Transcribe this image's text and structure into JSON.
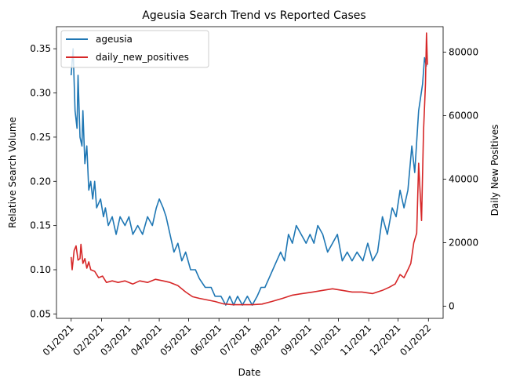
{
  "chart_data": {
    "type": "line",
    "title": "Ageusia Search Trend vs Reported Cases",
    "xlabel": "Date",
    "ylabel_left": "Relative Search Volume",
    "ylabel_right": "Daily New Positives",
    "x_tick_labels": [
      "01/2021",
      "02/2021",
      "03/2021",
      "04/2021",
      "05/2021",
      "06/2021",
      "07/2021",
      "08/2021",
      "09/2021",
      "10/2021",
      "11/2021",
      "12/2021",
      "01/2022"
    ],
    "x_ticks": [
      "2021-01-01",
      "2021-02-01",
      "2021-03-01",
      "2021-04-01",
      "2021-05-01",
      "2021-06-01",
      "2021-07-01",
      "2021-08-01",
      "2021-09-01",
      "2021-10-01",
      "2021-11-01",
      "2021-12-01",
      "2022-01-01"
    ],
    "xlim": [
      "2020-12-17",
      "2022-01-16"
    ],
    "ylim_left": [
      0.045,
      0.375
    ],
    "yticks_left": [
      "0.05",
      "0.10",
      "0.15",
      "0.20",
      "0.25",
      "0.30",
      "0.35"
    ],
    "ylim_right": [
      -3800,
      88000
    ],
    "yticks_right": [
      "0",
      "20000",
      "40000",
      "60000",
      "80000"
    ],
    "legend_position": "upper-left",
    "series": [
      {
        "name": "ageusia",
        "axis": "left",
        "color": "#1f77b4",
        "points": [
          [
            "2021-01-01",
            0.32
          ],
          [
            "2021-01-03",
            0.35
          ],
          [
            "2021-01-05",
            0.28
          ],
          [
            "2021-01-07",
            0.26
          ],
          [
            "2021-01-08",
            0.32
          ],
          [
            "2021-01-10",
            0.25
          ],
          [
            "2021-01-12",
            0.24
          ],
          [
            "2021-01-13",
            0.28
          ],
          [
            "2021-01-15",
            0.22
          ],
          [
            "2021-01-17",
            0.24
          ],
          [
            "2021-01-19",
            0.19
          ],
          [
            "2021-01-21",
            0.2
          ],
          [
            "2021-01-23",
            0.18
          ],
          [
            "2021-01-25",
            0.2
          ],
          [
            "2021-01-27",
            0.17
          ],
          [
            "2021-01-31",
            0.18
          ],
          [
            "2021-02-03",
            0.16
          ],
          [
            "2021-02-05",
            0.17
          ],
          [
            "2021-02-08",
            0.15
          ],
          [
            "2021-02-12",
            0.16
          ],
          [
            "2021-02-16",
            0.14
          ],
          [
            "2021-02-20",
            0.16
          ],
          [
            "2021-02-25",
            0.15
          ],
          [
            "2021-03-01",
            0.16
          ],
          [
            "2021-03-05",
            0.14
          ],
          [
            "2021-03-10",
            0.15
          ],
          [
            "2021-03-15",
            0.14
          ],
          [
            "2021-03-20",
            0.16
          ],
          [
            "2021-03-25",
            0.15
          ],
          [
            "2021-03-29",
            0.17
          ],
          [
            "2021-04-01",
            0.18
          ],
          [
            "2021-04-05",
            0.17
          ],
          [
            "2021-04-08",
            0.16
          ],
          [
            "2021-04-12",
            0.14
          ],
          [
            "2021-04-16",
            0.12
          ],
          [
            "2021-04-20",
            0.13
          ],
          [
            "2021-04-24",
            0.11
          ],
          [
            "2021-04-28",
            0.12
          ],
          [
            "2021-05-03",
            0.1
          ],
          [
            "2021-05-08",
            0.1
          ],
          [
            "2021-05-12",
            0.09
          ],
          [
            "2021-05-18",
            0.08
          ],
          [
            "2021-05-24",
            0.08
          ],
          [
            "2021-05-28",
            0.07
          ],
          [
            "2021-06-03",
            0.07
          ],
          [
            "2021-06-08",
            0.06
          ],
          [
            "2021-06-12",
            0.07
          ],
          [
            "2021-06-16",
            0.06
          ],
          [
            "2021-06-20",
            0.07
          ],
          [
            "2021-06-25",
            0.06
          ],
          [
            "2021-06-30",
            0.07
          ],
          [
            "2021-07-05",
            0.06
          ],
          [
            "2021-07-10",
            0.07
          ],
          [
            "2021-07-14",
            0.08
          ],
          [
            "2021-07-18",
            0.08
          ],
          [
            "2021-07-22",
            0.09
          ],
          [
            "2021-07-26",
            0.1
          ],
          [
            "2021-07-30",
            0.11
          ],
          [
            "2021-08-03",
            0.12
          ],
          [
            "2021-08-07",
            0.11
          ],
          [
            "2021-08-11",
            0.14
          ],
          [
            "2021-08-15",
            0.13
          ],
          [
            "2021-08-19",
            0.15
          ],
          [
            "2021-08-24",
            0.14
          ],
          [
            "2021-08-29",
            0.13
          ],
          [
            "2021-09-02",
            0.14
          ],
          [
            "2021-09-06",
            0.13
          ],
          [
            "2021-09-10",
            0.15
          ],
          [
            "2021-09-15",
            0.14
          ],
          [
            "2021-09-20",
            0.12
          ],
          [
            "2021-09-25",
            0.13
          ],
          [
            "2021-09-30",
            0.14
          ],
          [
            "2021-10-05",
            0.11
          ],
          [
            "2021-10-10",
            0.12
          ],
          [
            "2021-10-15",
            0.11
          ],
          [
            "2021-10-20",
            0.12
          ],
          [
            "2021-10-26",
            0.11
          ],
          [
            "2021-10-31",
            0.13
          ],
          [
            "2021-11-05",
            0.11
          ],
          [
            "2021-11-10",
            0.12
          ],
          [
            "2021-11-15",
            0.16
          ],
          [
            "2021-11-20",
            0.14
          ],
          [
            "2021-11-25",
            0.17
          ],
          [
            "2021-11-29",
            0.16
          ],
          [
            "2021-12-03",
            0.19
          ],
          [
            "2021-12-07",
            0.17
          ],
          [
            "2021-12-11",
            0.19
          ],
          [
            "2021-12-15",
            0.24
          ],
          [
            "2021-12-18",
            0.21
          ],
          [
            "2021-12-22",
            0.28
          ],
          [
            "2021-12-26",
            0.31
          ],
          [
            "2021-12-28",
            0.34
          ],
          [
            "2021-12-30",
            0.33
          ]
        ]
      },
      {
        "name": "daily_new_positives",
        "axis": "right",
        "color": "#d62728",
        "points": [
          [
            "2021-01-01",
            15500
          ],
          [
            "2021-01-02",
            11500
          ],
          [
            "2021-01-04",
            17500
          ],
          [
            "2021-01-06",
            19000
          ],
          [
            "2021-01-08",
            14500
          ],
          [
            "2021-01-10",
            15000
          ],
          [
            "2021-01-11",
            19500
          ],
          [
            "2021-01-13",
            13500
          ],
          [
            "2021-01-15",
            15000
          ],
          [
            "2021-01-17",
            12000
          ],
          [
            "2021-01-19",
            14000
          ],
          [
            "2021-01-21",
            11500
          ],
          [
            "2021-01-25",
            11000
          ],
          [
            "2021-01-29",
            9000
          ],
          [
            "2021-02-02",
            9500
          ],
          [
            "2021-02-06",
            7500
          ],
          [
            "2021-02-12",
            8000
          ],
          [
            "2021-02-18",
            7500
          ],
          [
            "2021-02-25",
            8000
          ],
          [
            "2021-03-05",
            7000
          ],
          [
            "2021-03-12",
            8000
          ],
          [
            "2021-03-20",
            7500
          ],
          [
            "2021-03-28",
            8500
          ],
          [
            "2021-04-05",
            8000
          ],
          [
            "2021-04-12",
            7500
          ],
          [
            "2021-04-20",
            6500
          ],
          [
            "2021-04-28",
            4500
          ],
          [
            "2021-05-05",
            3000
          ],
          [
            "2021-05-12",
            2500
          ],
          [
            "2021-05-20",
            2000
          ],
          [
            "2021-05-28",
            1500
          ],
          [
            "2021-06-05",
            800
          ],
          [
            "2021-06-15",
            500
          ],
          [
            "2021-06-25",
            500
          ],
          [
            "2021-07-05",
            500
          ],
          [
            "2021-07-15",
            700
          ],
          [
            "2021-07-25",
            1500
          ],
          [
            "2021-08-05",
            2500
          ],
          [
            "2021-08-15",
            3500
          ],
          [
            "2021-08-25",
            4000
          ],
          [
            "2021-09-05",
            4500
          ],
          [
            "2021-09-15",
            5000
          ],
          [
            "2021-09-25",
            5500
          ],
          [
            "2021-10-05",
            5000
          ],
          [
            "2021-10-15",
            4500
          ],
          [
            "2021-10-25",
            4500
          ],
          [
            "2021-11-05",
            4000
          ],
          [
            "2021-11-15",
            5000
          ],
          [
            "2021-11-22",
            6000
          ],
          [
            "2021-11-28",
            7000
          ],
          [
            "2021-12-03",
            10000
          ],
          [
            "2021-12-07",
            9000
          ],
          [
            "2021-12-11",
            11500
          ],
          [
            "2021-12-14",
            13500
          ],
          [
            "2021-12-17",
            20000
          ],
          [
            "2021-12-20",
            23000
          ],
          [
            "2021-12-22",
            45000
          ],
          [
            "2021-12-25",
            27000
          ],
          [
            "2021-12-27",
            55000
          ],
          [
            "2021-12-29",
            70000
          ],
          [
            "2021-12-30",
            86000
          ],
          [
            "2021-12-31",
            76000
          ]
        ]
      }
    ]
  }
}
